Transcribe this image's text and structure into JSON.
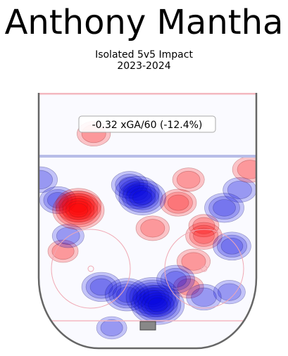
{
  "header": {
    "player_name": "Anthony Mantha",
    "subtitle_line1": "Isolated 5v5 Impact",
    "subtitle_line2": "2023-2024"
  },
  "chart_data": {
    "type": "heatmap",
    "title": "Anthony Mantha",
    "subtitle": "Isolated 5v5 Impact 2023-2024",
    "annotation": "-0.32 xGA/60 (-12.4%)",
    "metric": {
      "value": -0.32,
      "unit": "xGA/60",
      "percent": -12.4
    },
    "colors": {
      "positive": "#ff0000",
      "negative": "#0000dd",
      "neutral": "#ffffff"
    },
    "rink": {
      "blue_line_color": "#b8bde8",
      "red_line_color": "#f4b8c0",
      "board_color": "#666666"
    },
    "x_range": [
      -42.5,
      42.5
    ],
    "y_range": [
      0,
      100
    ],
    "regions": [
      {
        "x": -21,
        "y": 84,
        "value": 0.35
      },
      {
        "x": -27,
        "y": 56,
        "value": 0.75
      },
      {
        "x": -27,
        "y": 54,
        "value": 0.95
      },
      {
        "x": -7,
        "y": 64,
        "value": -0.45
      },
      {
        "x": -4,
        "y": 61,
        "value": -0.7
      },
      {
        "x": -2,
        "y": 59,
        "value": -0.8
      },
      {
        "x": -35,
        "y": 58,
        "value": -0.45
      },
      {
        "x": -42,
        "y": 66,
        "value": -0.4
      },
      {
        "x": -31,
        "y": 44,
        "value": -0.3
      },
      {
        "x": 2,
        "y": 47,
        "value": 0.35
      },
      {
        "x": 12,
        "y": 57,
        "value": 0.45
      },
      {
        "x": 22,
        "y": 48,
        "value": 0.25
      },
      {
        "x": 18,
        "y": 34,
        "value": 0.35
      },
      {
        "x": 16,
        "y": 66,
        "value": 0.3
      },
      {
        "x": -33,
        "y": 38,
        "value": 0.25
      },
      {
        "x": 30,
        "y": 55,
        "value": -0.55
      },
      {
        "x": 36,
        "y": 62,
        "value": -0.35
      },
      {
        "x": 33,
        "y": 40,
        "value": -0.5
      },
      {
        "x": 22,
        "y": 44,
        "value": 0.45
      },
      {
        "x": 40,
        "y": 70,
        "value": 0.4
      },
      {
        "x": -18,
        "y": 24,
        "value": -0.55
      },
      {
        "x": -8,
        "y": 21,
        "value": -0.7
      },
      {
        "x": 2,
        "y": 20,
        "value": -1.0
      },
      {
        "x": 4,
        "y": 17,
        "value": -1.0
      },
      {
        "x": 11,
        "y": 27,
        "value": -0.5
      },
      {
        "x": 16,
        "y": 24,
        "value": 0.25
      },
      {
        "x": 22,
        "y": 20,
        "value": -0.4
      },
      {
        "x": 32,
        "y": 22,
        "value": -0.3
      },
      {
        "x": -14,
        "y": 8,
        "value": -0.25
      }
    ]
  }
}
